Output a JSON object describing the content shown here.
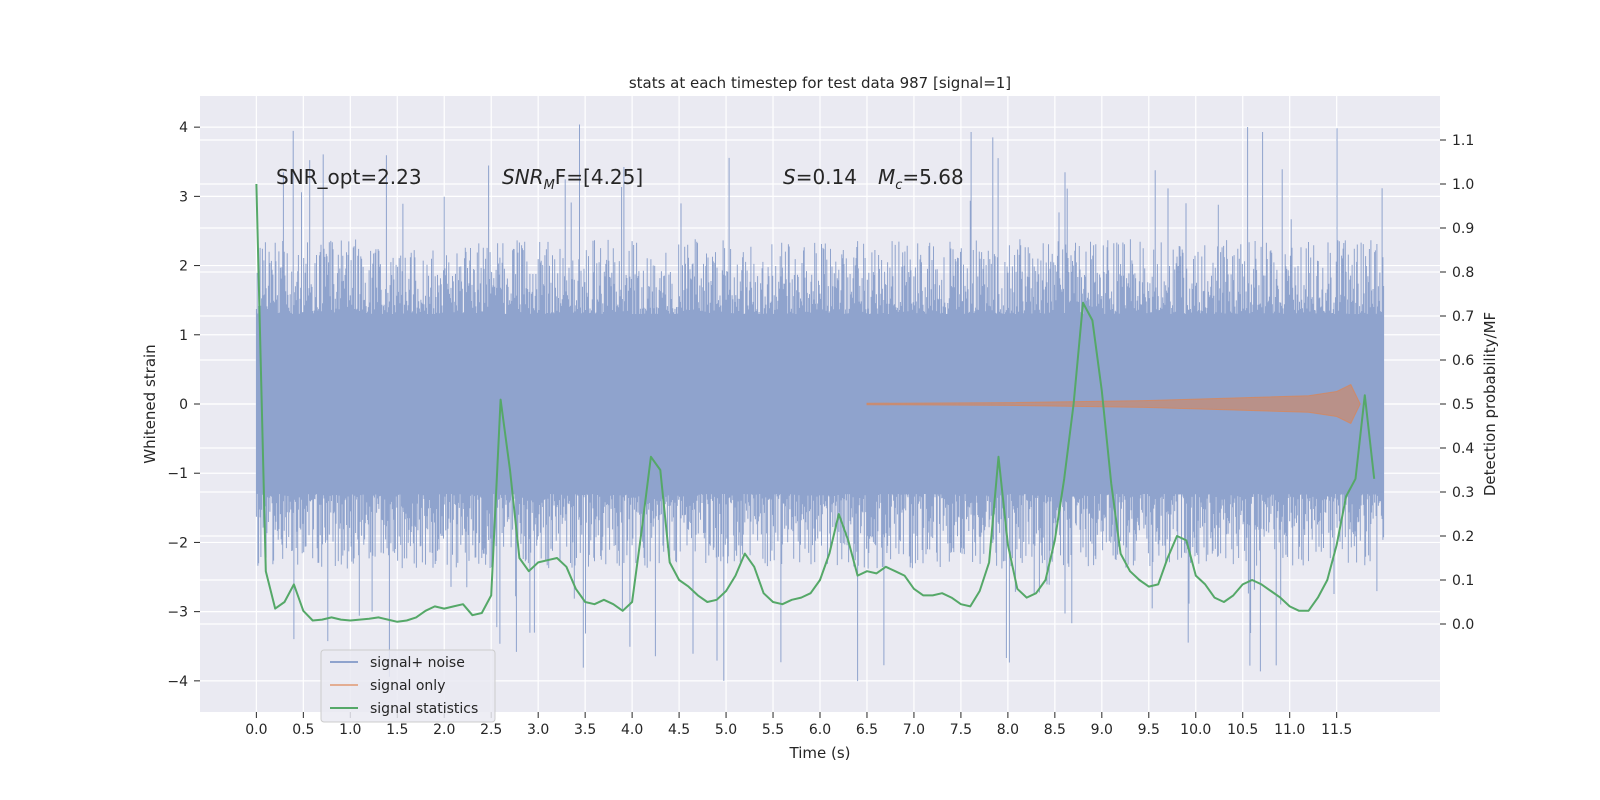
{
  "chart_data": {
    "type": "line",
    "title": "stats at each timestep for test data 987 [signal=1]",
    "xlabel": "Time (s)",
    "ylabel_left": "Whitened strain",
    "ylabel_right": "Detection probability/MF",
    "xlim": [
      -0.6,
      12.6
    ],
    "ylim_left": [
      -4.45,
      4.45
    ],
    "ylim_right": [
      -0.2,
      1.2
    ],
    "x_ticks": [
      "0.0",
      "0.5",
      "1.0",
      "1.5",
      "2.0",
      "2.5",
      "3.0",
      "3.5",
      "4.0",
      "4.5",
      "5.0",
      "5.5",
      "6.0",
      "6.5",
      "7.0",
      "7.5",
      "8.0",
      "8.5",
      "9.0",
      "9.5",
      "10.0",
      "10.5",
      "11.0",
      "11.5"
    ],
    "y_ticks_left": [
      "−4",
      "−3",
      "−2",
      "−1",
      "0",
      "1",
      "2",
      "3",
      "4"
    ],
    "y_ticks_right": [
      "0.0",
      "0.1",
      "0.2",
      "0.3",
      "0.4",
      "0.5",
      "0.6",
      "0.7",
      "0.8",
      "0.9",
      "1.0",
      "1.1"
    ],
    "annotations": {
      "snr_opt": "SNR_opt=2.23",
      "snr_mf_main": "SNR",
      "snr_mf_sub": "M",
      "snr_mf_rest": "F=[4.25]",
      "s_sym": "S",
      "s_val": "=0.14",
      "mc_sym": "M",
      "mc_sub": "c",
      "mc_val": "=5.68"
    },
    "series": [
      {
        "name": "signal+ noise",
        "color": "#8fa3cd",
        "x_range": [
          0.0,
          12.0
        ],
        "envelope": {
          "core_amplitude": 1.3,
          "peak_max": 4.1,
          "peak_min": -4.05
        },
        "values_note": "dense noisy whitened strain"
      },
      {
        "name": "signal only",
        "color": "#dd8452",
        "x_range": [
          6.5,
          11.75
        ],
        "values": [
          [
            6.5,
            0.01
          ],
          [
            8.0,
            0.02
          ],
          [
            9.5,
            0.05
          ],
          [
            10.5,
            0.09
          ],
          [
            11.2,
            0.12
          ],
          [
            11.5,
            0.18
          ],
          [
            11.65,
            0.28
          ],
          [
            11.75,
            0.0
          ]
        ]
      },
      {
        "name": "signal statistics",
        "color": "#55a868",
        "x": [
          0.0,
          0.1,
          0.2,
          0.3,
          0.4,
          0.5,
          0.6,
          0.7,
          0.8,
          0.9,
          1.0,
          1.1,
          1.2,
          1.3,
          1.4,
          1.5,
          1.6,
          1.7,
          1.8,
          1.9,
          2.0,
          2.1,
          2.2,
          2.3,
          2.4,
          2.5,
          2.6,
          2.7,
          2.8,
          2.9,
          3.0,
          3.1,
          3.2,
          3.3,
          3.4,
          3.5,
          3.6,
          3.7,
          3.8,
          3.9,
          4.0,
          4.1,
          4.2,
          4.3,
          4.4,
          4.5,
          4.6,
          4.7,
          4.8,
          4.9,
          5.0,
          5.1,
          5.2,
          5.3,
          5.4,
          5.5,
          5.6,
          5.7,
          5.8,
          5.9,
          6.0,
          6.1,
          6.2,
          6.3,
          6.4,
          6.5,
          6.6,
          6.7,
          6.8,
          6.9,
          7.0,
          7.1,
          7.2,
          7.3,
          7.4,
          7.5,
          7.6,
          7.7,
          7.8,
          7.9,
          8.0,
          8.1,
          8.2,
          8.3,
          8.4,
          8.5,
          8.6,
          8.7,
          8.8,
          8.9,
          9.0,
          9.1,
          9.2,
          9.3,
          9.4,
          9.5,
          9.6,
          9.7,
          9.8,
          9.9,
          10.0,
          10.1,
          10.2,
          10.3,
          10.4,
          10.5,
          10.6,
          10.7,
          10.8,
          10.9,
          11.0,
          11.1,
          11.2,
          11.3,
          11.4,
          11.5,
          11.6,
          11.7,
          11.8,
          11.9
        ],
        "values": [
          1.0,
          0.12,
          0.035,
          0.05,
          0.09,
          0.03,
          0.008,
          0.01,
          0.015,
          0.01,
          0.008,
          0.01,
          0.012,
          0.015,
          0.01,
          0.005,
          0.008,
          0.015,
          0.03,
          0.04,
          0.035,
          0.04,
          0.045,
          0.02,
          0.025,
          0.065,
          0.51,
          0.35,
          0.15,
          0.12,
          0.14,
          0.145,
          0.15,
          0.13,
          0.08,
          0.05,
          0.045,
          0.055,
          0.045,
          0.03,
          0.05,
          0.21,
          0.38,
          0.35,
          0.14,
          0.1,
          0.085,
          0.065,
          0.05,
          0.055,
          0.075,
          0.11,
          0.16,
          0.13,
          0.07,
          0.05,
          0.045,
          0.055,
          0.06,
          0.07,
          0.1,
          0.16,
          0.25,
          0.19,
          0.11,
          0.12,
          0.115,
          0.13,
          0.12,
          0.11,
          0.08,
          0.065,
          0.065,
          0.07,
          0.06,
          0.045,
          0.04,
          0.075,
          0.14,
          0.38,
          0.18,
          0.08,
          0.06,
          0.07,
          0.1,
          0.19,
          0.33,
          0.5,
          0.73,
          0.69,
          0.53,
          0.32,
          0.16,
          0.12,
          0.1,
          0.085,
          0.09,
          0.15,
          0.2,
          0.19,
          0.11,
          0.09,
          0.06,
          0.05,
          0.065,
          0.09,
          0.1,
          0.09,
          0.075,
          0.06,
          0.04,
          0.03,
          0.03,
          0.06,
          0.1,
          0.18,
          0.29,
          0.33,
          0.52,
          0.33
        ]
      }
    ],
    "legend": {
      "placement": "lower-left",
      "labels": [
        "signal+ noise",
        "signal only",
        "signal statistics"
      ]
    }
  },
  "colors": {
    "plot_background": "#eaeaf2",
    "grid": "#ffffff",
    "text": "#262626",
    "noise": "#8fa3cd",
    "signal": "#dd8452",
    "stats": "#55a868"
  }
}
